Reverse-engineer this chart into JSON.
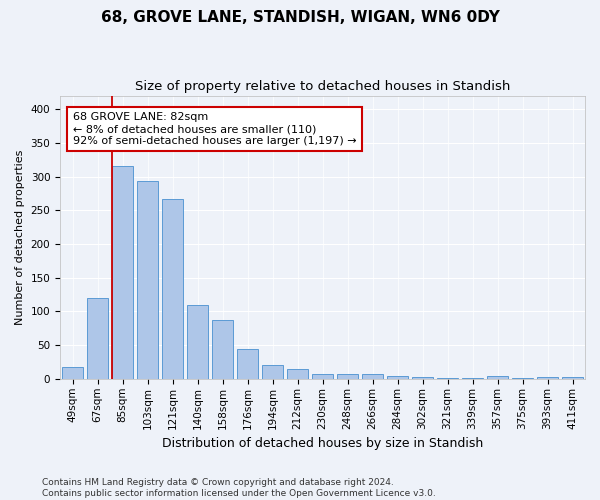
{
  "title1": "68, GROVE LANE, STANDISH, WIGAN, WN6 0DY",
  "title2": "Size of property relative to detached houses in Standish",
  "xlabel": "Distribution of detached houses by size in Standish",
  "ylabel": "Number of detached properties",
  "categories": [
    "49sqm",
    "67sqm",
    "85sqm",
    "103sqm",
    "121sqm",
    "140sqm",
    "158sqm",
    "176sqm",
    "194sqm",
    "212sqm",
    "230sqm",
    "248sqm",
    "266sqm",
    "284sqm",
    "302sqm",
    "321sqm",
    "339sqm",
    "357sqm",
    "375sqm",
    "393sqm",
    "411sqm"
  ],
  "values": [
    18,
    120,
    315,
    293,
    266,
    109,
    88,
    44,
    20,
    15,
    8,
    7,
    7,
    5,
    3,
    2,
    2,
    4,
    2,
    3,
    3
  ],
  "bar_color": "#aec6e8",
  "bar_edge_color": "#5b9bd5",
  "property_line_color": "#cc0000",
  "annotation_text": "68 GROVE LANE: 82sqm\n← 8% of detached houses are smaller (110)\n92% of semi-detached houses are larger (1,197) →",
  "annotation_box_color": "#ffffff",
  "annotation_box_edge_color": "#cc0000",
  "ylim": [
    0,
    420
  ],
  "yticks": [
    0,
    50,
    100,
    150,
    200,
    250,
    300,
    350,
    400
  ],
  "background_color": "#eef2f9",
  "plot_bg_color": "#eef2f9",
  "footer": "Contains HM Land Registry data © Crown copyright and database right 2024.\nContains public sector information licensed under the Open Government Licence v3.0.",
  "title1_fontsize": 11,
  "title2_fontsize": 9.5,
  "xlabel_fontsize": 9,
  "ylabel_fontsize": 8,
  "tick_fontsize": 7.5,
  "annotation_fontsize": 8,
  "footer_fontsize": 6.5
}
